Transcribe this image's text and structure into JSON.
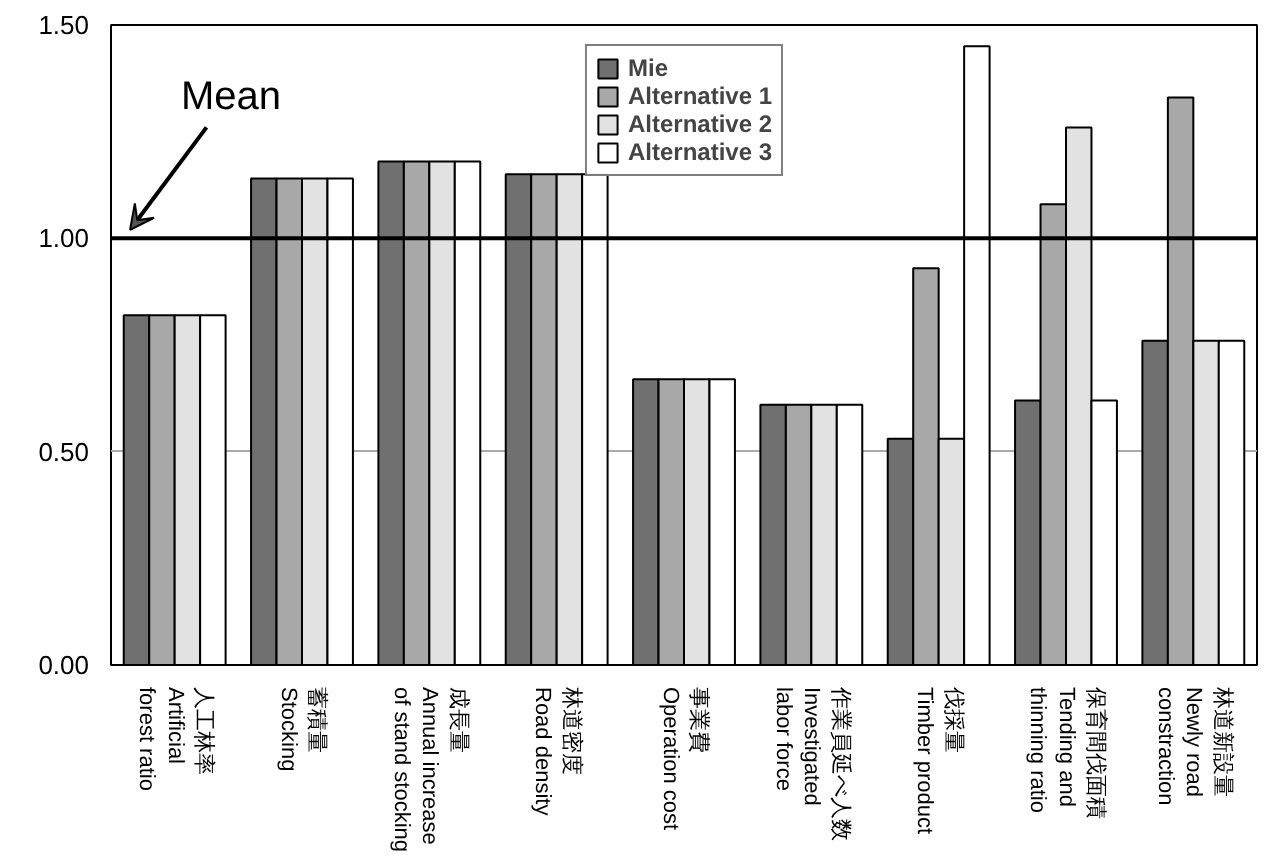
{
  "chart_data": {
    "type": "bar",
    "categories": [
      "人工林率\nArtificial\nforest ratio",
      "蓄積量\nStocking",
      "成長量\nAnnual increase\nof stand stocking",
      "林道密度\nRoad density",
      "事業費\nOperation cost",
      "作業員延べ人数\nInvestigated\nlabor force",
      "伐採量\nTimber product",
      "保育間伐面積\nTending and\nthinning ratio",
      "林道新設量\nNewly road\nconstraction"
    ],
    "series": [
      {
        "name": "Mie",
        "color": "#707070",
        "values": [
          0.82,
          1.14,
          1.18,
          1.15,
          0.67,
          0.61,
          0.53,
          0.62,
          0.76
        ]
      },
      {
        "name": "Alternative 1",
        "color": "#a8a8a8",
        "values": [
          0.82,
          1.14,
          1.18,
          1.15,
          0.67,
          0.61,
          0.93,
          1.08,
          1.33
        ]
      },
      {
        "name": "Alternative 2",
        "color": "#e2e2e2",
        "values": [
          0.82,
          1.14,
          1.18,
          1.15,
          0.67,
          0.61,
          0.53,
          1.26,
          0.76
        ]
      },
      {
        "name": "Alternative 3",
        "color": "#ffffff",
        "values": [
          0.82,
          1.14,
          1.18,
          1.15,
          0.67,
          0.61,
          1.45,
          0.62,
          0.76
        ]
      }
    ],
    "ylim": [
      0,
      1.5
    ],
    "yticks": [
      {
        "value": 0,
        "label": "0.00"
      },
      {
        "value": 0.5,
        "label": "0.50"
      },
      {
        "value": 1,
        "label": "1.00"
      },
      {
        "value": 1.5,
        "label": "1.50"
      }
    ],
    "ref_lines": [
      {
        "axis": "y",
        "value": 1.0,
        "label": "Mean",
        "color": "#000000"
      }
    ],
    "grid": "y",
    "legend": "top"
  }
}
